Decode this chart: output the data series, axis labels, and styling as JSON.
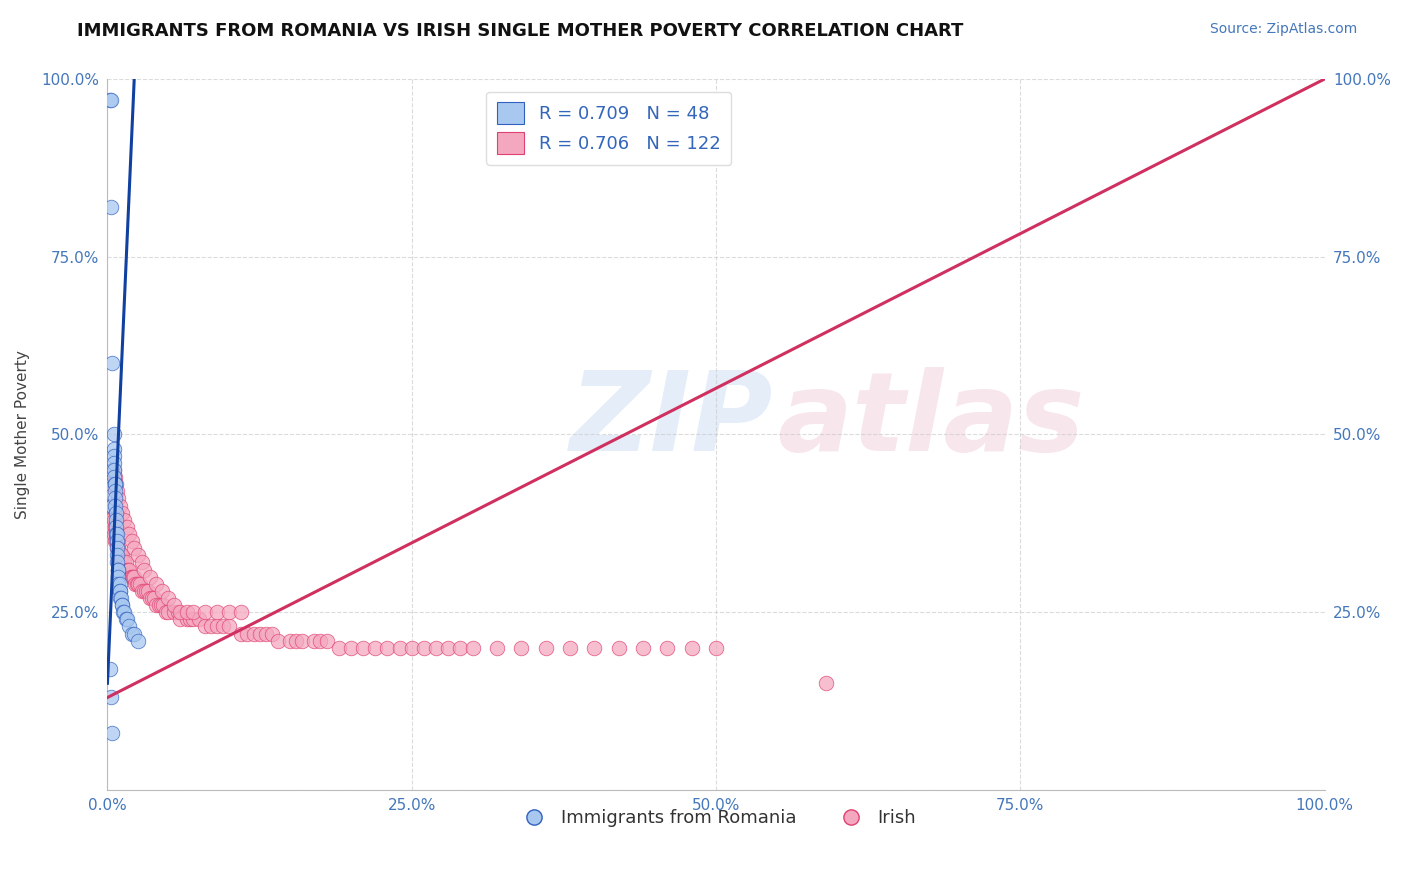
{
  "title": "IMMIGRANTS FROM ROMANIA VS IRISH SINGLE MOTHER POVERTY CORRELATION CHART",
  "source": "Source: ZipAtlas.com",
  "ylabel": "Single Mother Poverty",
  "legend_labels": [
    "Immigrants from Romania",
    "Irish"
  ],
  "romania_R": 0.709,
  "romania_N": 48,
  "irish_R": 0.706,
  "irish_N": 122,
  "xlim": [
    0,
    1
  ],
  "ylim": [
    0,
    1
  ],
  "x_ticks": [
    0,
    0.25,
    0.5,
    0.75,
    1.0
  ],
  "y_ticks": [
    0,
    0.25,
    0.5,
    0.75,
    1.0
  ],
  "x_tick_labels": [
    "0.0%",
    "25.0%",
    "50.0%",
    "75.0%",
    "100.0%"
  ],
  "y_tick_labels_left": [
    "",
    "25.0%",
    "50.0%",
    "75.0%",
    "100.0%"
  ],
  "y_tick_labels_right": [
    "",
    "25.0%",
    "50.0%",
    "75.0%",
    "100.0%"
  ],
  "blue_fill": "#A8C8F0",
  "pink_fill": "#F4A8C0",
  "blue_edge": "#3060C0",
  "pink_edge": "#E04070",
  "blue_line": "#1040A0",
  "pink_line": "#D03060",
  "background_color": "#FFFFFF",
  "grid_color": "#CCCCCC",
  "romania_scatter_x": [
    0.002,
    0.003,
    0.003,
    0.004,
    0.004,
    0.004,
    0.005,
    0.005,
    0.005,
    0.005,
    0.005,
    0.005,
    0.006,
    0.006,
    0.006,
    0.006,
    0.006,
    0.007,
    0.007,
    0.007,
    0.007,
    0.008,
    0.008,
    0.008,
    0.008,
    0.008,
    0.009,
    0.009,
    0.009,
    0.009,
    0.01,
    0.01,
    0.01,
    0.01,
    0.011,
    0.012,
    0.012,
    0.013,
    0.014,
    0.015,
    0.016,
    0.018,
    0.02,
    0.022,
    0.025,
    0.002,
    0.003,
    0.004
  ],
  "romania_scatter_y": [
    0.97,
    0.82,
    0.97,
    0.6,
    0.45,
    0.4,
    0.5,
    0.48,
    0.47,
    0.46,
    0.45,
    0.44,
    0.43,
    0.43,
    0.42,
    0.41,
    0.4,
    0.39,
    0.38,
    0.37,
    0.36,
    0.36,
    0.35,
    0.34,
    0.33,
    0.32,
    0.31,
    0.31,
    0.3,
    0.29,
    0.29,
    0.28,
    0.28,
    0.27,
    0.27,
    0.26,
    0.26,
    0.25,
    0.25,
    0.24,
    0.24,
    0.23,
    0.22,
    0.22,
    0.21,
    0.17,
    0.13,
    0.08
  ],
  "irish_scatter_x": [
    0.002,
    0.003,
    0.004,
    0.004,
    0.005,
    0.005,
    0.006,
    0.006,
    0.007,
    0.007,
    0.008,
    0.008,
    0.009,
    0.009,
    0.01,
    0.01,
    0.011,
    0.012,
    0.013,
    0.014,
    0.015,
    0.016,
    0.017,
    0.018,
    0.019,
    0.02,
    0.021,
    0.022,
    0.023,
    0.024,
    0.025,
    0.027,
    0.028,
    0.03,
    0.032,
    0.033,
    0.035,
    0.037,
    0.038,
    0.04,
    0.042,
    0.044,
    0.046,
    0.048,
    0.05,
    0.055,
    0.058,
    0.06,
    0.065,
    0.068,
    0.07,
    0.075,
    0.08,
    0.085,
    0.09,
    0.095,
    0.1,
    0.11,
    0.115,
    0.12,
    0.125,
    0.13,
    0.135,
    0.14,
    0.15,
    0.155,
    0.16,
    0.17,
    0.175,
    0.18,
    0.19,
    0.2,
    0.21,
    0.22,
    0.23,
    0.24,
    0.25,
    0.26,
    0.27,
    0.28,
    0.29,
    0.3,
    0.32,
    0.34,
    0.36,
    0.38,
    0.4,
    0.42,
    0.44,
    0.46,
    0.48,
    0.5,
    0.003,
    0.004,
    0.005,
    0.006,
    0.007,
    0.008,
    0.009,
    0.01,
    0.012,
    0.014,
    0.016,
    0.018,
    0.02,
    0.022,
    0.025,
    0.028,
    0.03,
    0.035,
    0.04,
    0.045,
    0.05,
    0.055,
    0.06,
    0.065,
    0.07,
    0.08,
    0.09,
    0.1,
    0.11,
    0.59
  ],
  "irish_scatter_y": [
    0.4,
    0.38,
    0.4,
    0.37,
    0.38,
    0.36,
    0.37,
    0.35,
    0.36,
    0.35,
    0.35,
    0.34,
    0.34,
    0.34,
    0.33,
    0.33,
    0.33,
    0.33,
    0.32,
    0.32,
    0.32,
    0.31,
    0.31,
    0.31,
    0.3,
    0.3,
    0.3,
    0.3,
    0.29,
    0.29,
    0.29,
    0.29,
    0.28,
    0.28,
    0.28,
    0.28,
    0.27,
    0.27,
    0.27,
    0.26,
    0.26,
    0.26,
    0.26,
    0.25,
    0.25,
    0.25,
    0.25,
    0.24,
    0.24,
    0.24,
    0.24,
    0.24,
    0.23,
    0.23,
    0.23,
    0.23,
    0.23,
    0.22,
    0.22,
    0.22,
    0.22,
    0.22,
    0.22,
    0.21,
    0.21,
    0.21,
    0.21,
    0.21,
    0.21,
    0.21,
    0.2,
    0.2,
    0.2,
    0.2,
    0.2,
    0.2,
    0.2,
    0.2,
    0.2,
    0.2,
    0.2,
    0.2,
    0.2,
    0.2,
    0.2,
    0.2,
    0.2,
    0.2,
    0.2,
    0.2,
    0.2,
    0.2,
    0.43,
    0.44,
    0.45,
    0.44,
    0.43,
    0.42,
    0.41,
    0.4,
    0.39,
    0.38,
    0.37,
    0.36,
    0.35,
    0.34,
    0.33,
    0.32,
    0.31,
    0.3,
    0.29,
    0.28,
    0.27,
    0.26,
    0.25,
    0.25,
    0.25,
    0.25,
    0.25,
    0.25,
    0.25,
    0.15
  ],
  "blue_line_x": [
    0.0,
    0.022
  ],
  "blue_line_y": [
    0.15,
    1.0
  ],
  "pink_line_x": [
    0.0,
    1.0
  ],
  "pink_line_y": [
    0.13,
    1.0
  ]
}
